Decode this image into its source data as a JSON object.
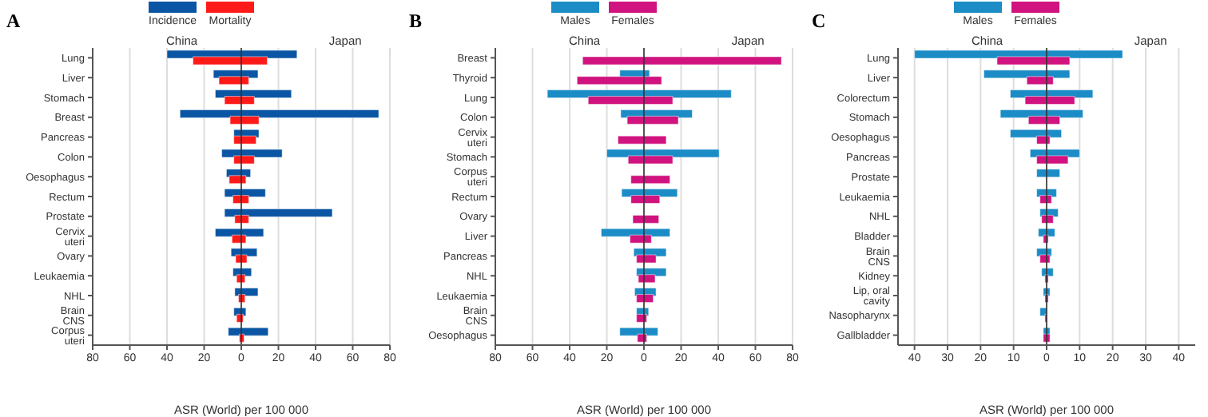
{
  "chart_data": [
    {
      "type": "bar",
      "title": "A",
      "orientation": "horizontal",
      "xlabel": "ASR (World) per 100 000",
      "annotations": [
        "China",
        "Japan"
      ],
      "legend": "top",
      "grid": "x",
      "categories": [
        "Lung",
        "Liver",
        "Stomach",
        "Breast",
        "Pancreas",
        "Colon",
        "Oesophagus",
        "Rectum",
        "Prostate",
        "Cervix uteri",
        "Ovary",
        "Leukaemia",
        "NHL",
        "Brain CNS",
        "Corpus uteri"
      ],
      "series": [
        {
          "name": "Incidence",
          "color": "#0a56a4",
          "base": [
            -40,
            -15,
            -14,
            -33,
            -4,
            -10.5,
            -8,
            -9,
            -9,
            -14,
            -5.5,
            -4.5,
            -3.5,
            -4,
            -7
          ],
          "values": [
            70,
            24,
            41,
            107,
            13.5,
            32.5,
            13,
            22,
            58,
            26,
            14,
            10,
            12.5,
            6.5,
            21.5
          ]
        },
        {
          "name": "Mortality",
          "color": "#ff1a1a",
          "base": [
            -26,
            -12,
            -9,
            -6,
            -4,
            -4,
            -6.5,
            -4.5,
            -3.5,
            -5,
            -3,
            -2.5,
            -1.5,
            -2.5,
            -1
          ],
          "values": [
            40,
            16,
            16,
            15.5,
            12,
            11,
            9,
            8.5,
            7.5,
            7.5,
            6,
            4.5,
            3.5,
            3.5,
            2.5
          ]
        }
      ],
      "xlim": [
        -80,
        80
      ],
      "xticks": [
        {
          "value": -80,
          "label": "80"
        },
        {
          "value": -60,
          "label": "60"
        },
        {
          "value": -40,
          "label": "40"
        },
        {
          "value": -20,
          "label": "20"
        },
        0,
        20,
        40,
        60,
        80
      ],
      "ref_lines": [
        {
          "axis": "x",
          "value": 0,
          "color": "#333333"
        }
      ]
    },
    {
      "type": "bar",
      "title": "B",
      "orientation": "horizontal",
      "xlabel": "ASR (World) per 100 000",
      "annotations": [
        "China",
        "Japan"
      ],
      "legend": "top",
      "grid": "x",
      "categories": [
        "Breast",
        "Thyroid",
        "Lung",
        "Colon",
        "Cervix uteri",
        "Stomach",
        "Corpus uteri",
        "Rectum",
        "Ovary",
        "Liver",
        "Pancreas",
        "NHL",
        "Leukaemia",
        "Brain CNS",
        "Oesophagus"
      ],
      "series": [
        {
          "name": "Males",
          "color": "#1c8cc6",
          "base": [
            null,
            -13,
            -52,
            -12.5,
            null,
            -20,
            null,
            -12,
            null,
            -23,
            -5.5,
            -4,
            -5,
            -4,
            -13
          ],
          "values": [
            null,
            16,
            99,
            38.5,
            null,
            60.5,
            null,
            30,
            null,
            37,
            17.5,
            16,
            11.5,
            6.5,
            20.5
          ]
        },
        {
          "name": "Females",
          "color": "#d0137f",
          "base": [
            -33,
            -36,
            -30,
            -9,
            -14,
            -8.5,
            -7,
            -7,
            -6,
            -7.5,
            -4,
            -3,
            -4,
            -4,
            -3.5
          ],
          "values": [
            107,
            45.5,
            45.5,
            27.5,
            26,
            24,
            21,
            15.5,
            14,
            11.5,
            10.5,
            9,
            9,
            5.5,
            5
          ]
        }
      ],
      "xlim": [
        -80,
        80
      ],
      "xticks": [
        {
          "value": -80,
          "label": "80"
        },
        {
          "value": -60,
          "label": "60"
        },
        {
          "value": -40,
          "label": "40"
        },
        {
          "value": -20,
          "label": "20"
        },
        0,
        20,
        40,
        60,
        80
      ],
      "ref_lines": [
        {
          "axis": "x",
          "value": 0,
          "color": "#333333"
        }
      ]
    },
    {
      "type": "bar",
      "title": "C",
      "orientation": "horizontal",
      "xlabel": "ASR (World) per 100 000",
      "annotations": [
        "China",
        "Japan"
      ],
      "legend": "top",
      "grid": "x",
      "categories": [
        "Lung",
        "Liver",
        "Colorectum",
        "Stomach",
        "Oesophagus",
        "Pancreas",
        "Prostate",
        "Leukaemia",
        "NHL",
        "Bladder",
        "Brain CNS",
        "Kidney",
        "Lip, oral cavity",
        "Nasopharynx",
        "Gallbladder"
      ],
      "series": [
        {
          "name": "Males",
          "color": "#1c8cc6",
          "base": [
            -40,
            -19,
            -11,
            -14,
            -11,
            -5,
            -3,
            -3,
            -2,
            -2.5,
            -3,
            -1.5,
            -1,
            -2,
            -1
          ],
          "values": [
            63,
            26,
            25,
            25,
            15.5,
            15,
            7,
            6,
            5.5,
            5,
            4.5,
            3.5,
            2,
            2.2,
            2
          ]
        },
        {
          "name": "Females",
          "color": "#d0137f",
          "base": [
            -15,
            -6,
            -6.5,
            -5.5,
            -3,
            -3,
            null,
            -2,
            -1.5,
            -1,
            -2,
            -0.5,
            -0.5,
            -0.5,
            -1
          ],
          "values": [
            22,
            8,
            15,
            9.5,
            4,
            9.5,
            null,
            3.5,
            3.5,
            1.5,
            3,
            1,
            1,
            0.7,
            2
          ]
        }
      ],
      "xlim": [
        -45,
        45
      ],
      "xticks": [
        {
          "value": -40,
          "label": "40"
        },
        {
          "value": -30,
          "label": "30"
        },
        {
          "value": -20,
          "label": "20"
        },
        {
          "value": -10,
          "label": "10"
        },
        0,
        10,
        20,
        30,
        40
      ],
      "ref_lines": [
        {
          "axis": "x",
          "value": 0,
          "color": "#333333"
        }
      ]
    }
  ]
}
